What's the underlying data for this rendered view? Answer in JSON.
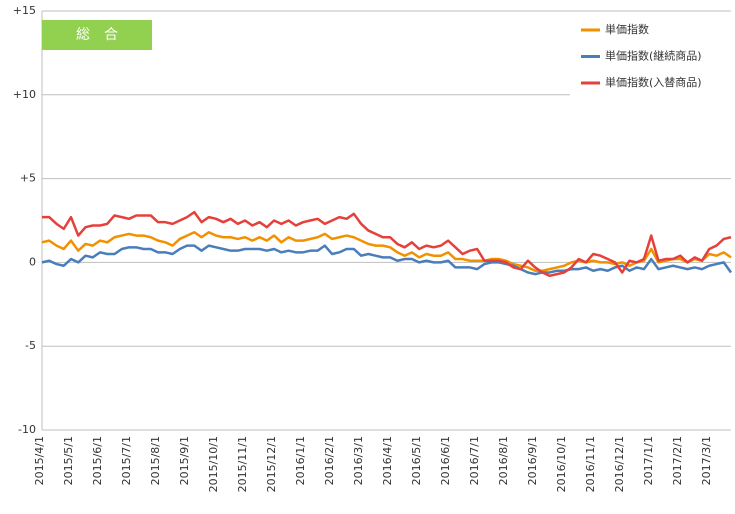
{
  "chart_data": {
    "type": "line",
    "title": "総　合",
    "categories": [
      "2015/4/1",
      null,
      null,
      null,
      "2015/5/1",
      null,
      null,
      null,
      "2015/6/1",
      null,
      null,
      null,
      "2015/7/1",
      null,
      null,
      null,
      "2015/8/1",
      null,
      null,
      null,
      "2015/9/1",
      null,
      null,
      null,
      "2015/10/1",
      null,
      null,
      null,
      "2015/11/1",
      null,
      null,
      null,
      "2015/12/1",
      null,
      null,
      null,
      "2016/1/1",
      null,
      null,
      null,
      "2016/2/1",
      null,
      null,
      null,
      "2016/3/1",
      null,
      null,
      null,
      "2016/4/1",
      null,
      null,
      null,
      "2016/5/1",
      null,
      null,
      null,
      "2016/6/1",
      null,
      null,
      null,
      "2016/7/1",
      null,
      null,
      null,
      "2016/8/1",
      null,
      null,
      null,
      "2016/9/1",
      null,
      null,
      null,
      "2016/10/1",
      null,
      null,
      null,
      "2016/11/1",
      null,
      null,
      null,
      "2016/12/1",
      null,
      null,
      null,
      "2017/1/1",
      null,
      null,
      null,
      "2017/2/1",
      null,
      null,
      null,
      "2017/3/1",
      null,
      null,
      null
    ],
    "series": [
      {
        "name": "単価指数",
        "color": "#f29100",
        "values": [
          1.2,
          1.3,
          1.0,
          0.8,
          1.3,
          0.7,
          1.1,
          1.0,
          1.3,
          1.2,
          1.5,
          1.6,
          1.7,
          1.6,
          1.6,
          1.5,
          1.3,
          1.2,
          1.0,
          1.4,
          1.6,
          1.8,
          1.5,
          1.8,
          1.6,
          1.5,
          1.5,
          1.4,
          1.5,
          1.3,
          1.5,
          1.3,
          1.6,
          1.2,
          1.5,
          1.3,
          1.3,
          1.4,
          1.5,
          1.7,
          1.4,
          1.5,
          1.6,
          1.5,
          1.3,
          1.1,
          1.0,
          1.0,
          0.9,
          0.6,
          0.4,
          0.6,
          0.3,
          0.5,
          0.4,
          0.4,
          0.6,
          0.2,
          0.2,
          0.1,
          0.1,
          0.1,
          0.2,
          0.2,
          0.1,
          -0.1,
          -0.2,
          -0.3,
          -0.5,
          -0.5,
          -0.4,
          -0.3,
          -0.2,
          0.0,
          0.1,
          0.0,
          0.1,
          0.0,
          0.0,
          -0.1,
          0.0,
          -0.2,
          0.0,
          0.1,
          0.8,
          0.0,
          0.1,
          0.2,
          0.2,
          0.0,
          0.2,
          0.1,
          0.5,
          0.4,
          0.6,
          0.3
        ]
      },
      {
        "name": "単価指数(継続商品)",
        "color": "#4a7ebb",
        "values": [
          0.0,
          0.1,
          -0.1,
          -0.2,
          0.2,
          0.0,
          0.4,
          0.3,
          0.6,
          0.5,
          0.5,
          0.8,
          0.9,
          0.9,
          0.8,
          0.8,
          0.6,
          0.6,
          0.5,
          0.8,
          1.0,
          1.0,
          0.7,
          1.0,
          0.9,
          0.8,
          0.7,
          0.7,
          0.8,
          0.8,
          0.8,
          0.7,
          0.8,
          0.6,
          0.7,
          0.6,
          0.6,
          0.7,
          0.7,
          1.0,
          0.5,
          0.6,
          0.8,
          0.8,
          0.4,
          0.5,
          0.4,
          0.3,
          0.3,
          0.1,
          0.2,
          0.2,
          0.0,
          0.1,
          0.0,
          0.0,
          0.1,
          -0.3,
          -0.3,
          -0.3,
          -0.4,
          -0.1,
          0.0,
          0.0,
          -0.1,
          -0.2,
          -0.4,
          -0.6,
          -0.7,
          -0.6,
          -0.6,
          -0.5,
          -0.5,
          -0.4,
          -0.4,
          -0.3,
          -0.5,
          -0.4,
          -0.5,
          -0.3,
          -0.2,
          -0.5,
          -0.3,
          -0.4,
          0.2,
          -0.4,
          -0.3,
          -0.2,
          -0.3,
          -0.4,
          -0.3,
          -0.4,
          -0.2,
          -0.1,
          0.0,
          -0.6
        ]
      },
      {
        "name": "単価指数(入替商品)",
        "color": "#e5413b",
        "values": [
          2.7,
          2.7,
          2.3,
          2.0,
          2.7,
          1.6,
          2.1,
          2.2,
          2.2,
          2.3,
          2.8,
          2.7,
          2.6,
          2.8,
          2.8,
          2.8,
          2.4,
          2.4,
          2.3,
          2.5,
          2.7,
          3.0,
          2.4,
          2.7,
          2.6,
          2.4,
          2.6,
          2.3,
          2.5,
          2.2,
          2.4,
          2.1,
          2.5,
          2.3,
          2.5,
          2.2,
          2.4,
          2.5,
          2.6,
          2.3,
          2.5,
          2.7,
          2.6,
          2.9,
          2.3,
          1.9,
          1.7,
          1.5,
          1.5,
          1.1,
          0.9,
          1.2,
          0.8,
          1.0,
          0.9,
          1.0,
          1.3,
          0.9,
          0.5,
          0.7,
          0.8,
          0.1,
          0.1,
          0.1,
          0.0,
          -0.3,
          -0.4,
          0.1,
          -0.3,
          -0.6,
          -0.8,
          -0.7,
          -0.6,
          -0.3,
          0.2,
          0.0,
          0.5,
          0.4,
          0.2,
          0.0,
          -0.6,
          0.1,
          0.0,
          0.2,
          1.6,
          0.1,
          0.2,
          0.2,
          0.4,
          0.0,
          0.3,
          0.1,
          0.8,
          1.0,
          1.4,
          1.5
        ]
      }
    ],
    "ylim": [
      -10,
      15
    ],
    "yticks": [
      {
        "value": 15,
        "label": "+15"
      },
      {
        "value": 10,
        "label": "+10"
      },
      {
        "value": 5,
        "label": "+5"
      },
      0,
      -5,
      -10
    ],
    "grid": true,
    "legend": "top-right"
  }
}
